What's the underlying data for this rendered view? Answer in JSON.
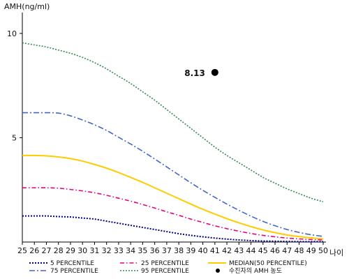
{
  "chart_data": {
    "type": "line",
    "ylabel": "AMH(ng/ml)",
    "xlabel": "나이",
    "xlim": [
      25,
      50
    ],
    "ylim": [
      0,
      11
    ],
    "yticks": [
      "5",
      "10"
    ],
    "x": [
      25,
      26,
      27,
      28,
      29,
      30,
      31,
      32,
      33,
      34,
      35,
      36,
      37,
      38,
      39,
      40,
      41,
      42,
      43,
      44,
      45,
      46,
      47,
      48,
      49,
      50
    ],
    "series": [
      {
        "key": "p5",
        "name": "5 PERCENTILE",
        "color": "#000080",
        "dash": "2,2",
        "width": 2,
        "values": [
          1.25,
          1.25,
          1.25,
          1.22,
          1.2,
          1.15,
          1.1,
          1.0,
          0.9,
          0.8,
          0.7,
          0.6,
          0.5,
          0.4,
          0.32,
          0.25,
          0.19,
          0.14,
          0.1,
          0.07,
          0.05,
          0.04,
          0.03,
          0.02,
          0.02,
          0.02
        ]
      },
      {
        "key": "p25",
        "name": "25 PERCENTILE",
        "color": "#e6007e",
        "dash": "6,3,1.5,3",
        "width": 1.6,
        "values": [
          2.6,
          2.6,
          2.6,
          2.58,
          2.52,
          2.45,
          2.36,
          2.24,
          2.1,
          1.96,
          1.8,
          1.63,
          1.45,
          1.28,
          1.1,
          0.94,
          0.78,
          0.64,
          0.52,
          0.41,
          0.32,
          0.25,
          0.19,
          0.15,
          0.12,
          0.1
        ]
      },
      {
        "key": "median",
        "name": "MEDIAN(50 PERCENTILE)",
        "color": "#ffcc00",
        "dash": "",
        "width": 2,
        "values": [
          4.15,
          4.15,
          4.13,
          4.08,
          4.0,
          3.88,
          3.72,
          3.54,
          3.33,
          3.1,
          2.86,
          2.6,
          2.34,
          2.08,
          1.82,
          1.57,
          1.34,
          1.12,
          0.92,
          0.74,
          0.58,
          0.45,
          0.34,
          0.26,
          0.2,
          0.15
        ]
      },
      {
        "key": "p75",
        "name": "75 PERCENTILE",
        "color": "#4466cc",
        "dash": "8,3,2,3",
        "width": 1.6,
        "values": [
          6.2,
          6.2,
          6.2,
          6.18,
          6.05,
          5.85,
          5.62,
          5.35,
          5.02,
          4.7,
          4.35,
          3.98,
          3.6,
          3.22,
          2.84,
          2.48,
          2.14,
          1.82,
          1.52,
          1.24,
          0.99,
          0.78,
          0.6,
          0.46,
          0.35,
          0.27
        ]
      },
      {
        "key": "p95",
        "name": "95 PERCENTILE",
        "color": "#338855",
        "dash": "2,2",
        "width": 1.6,
        "values": [
          9.55,
          9.45,
          9.35,
          9.2,
          9.05,
          8.85,
          8.6,
          8.3,
          7.95,
          7.6,
          7.2,
          6.8,
          6.35,
          5.9,
          5.45,
          5.0,
          4.55,
          4.15,
          3.8,
          3.45,
          3.1,
          2.82,
          2.55,
          2.32,
          2.1,
          1.93
        ]
      }
    ],
    "point": {
      "label": "수진자의 AMH 농도",
      "x": 41,
      "y": 8.13,
      "value_label": "8.13",
      "color": "#000000"
    },
    "legend_placement": "bottom",
    "legend_order": [
      "p5",
      "p25",
      "median",
      "p75",
      "p95",
      "point"
    ],
    "grid": false
  }
}
